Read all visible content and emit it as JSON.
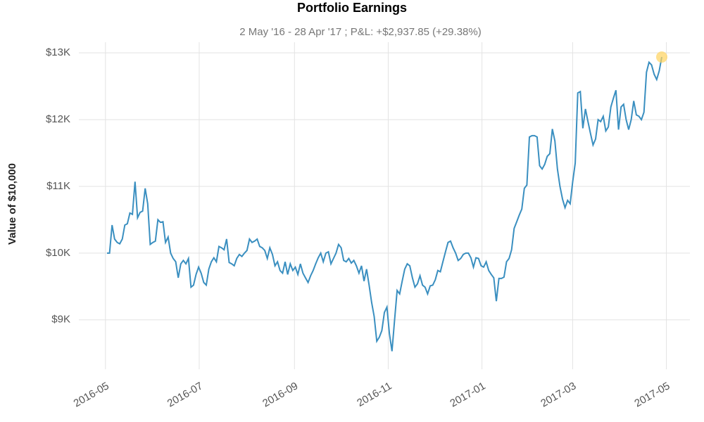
{
  "chart_data": {
    "type": "line",
    "title": "Portfolio Earnings",
    "subtitle": "2 May '16 - 28 Apr '17 ;  P&L: +$2,937.85 (+29.38%)",
    "ylabel": "Value of  $10,000",
    "xlim": [
      "2016-05-02",
      "2017-04-28"
    ],
    "xticks": [
      "2016-05",
      "2016-07",
      "2016-09",
      "2016-11",
      "2017-01",
      "2017-03",
      "2017-05"
    ],
    "ylim": [
      8260,
      13160
    ],
    "yticks": [
      {
        "value": 9000,
        "label": "$9K"
      },
      {
        "value": 10000,
        "label": "$10K"
      },
      {
        "value": 11000,
        "label": "$11K"
      },
      {
        "value": 12000,
        "label": "$12K"
      },
      {
        "value": 13000,
        "label": "$13K"
      }
    ],
    "grid": true,
    "series": [
      {
        "color": "#3a8fc0",
        "values": [
          10000,
          10000,
          10420,
          10210,
          10160,
          10140,
          10210,
          10420,
          10440,
          10600,
          10580,
          11070,
          10530,
          10610,
          10630,
          10970,
          10740,
          10130,
          10160,
          10180,
          10500,
          10460,
          10470,
          10160,
          10240,
          10000,
          9920,
          9870,
          9630,
          9840,
          9890,
          9840,
          9920,
          9490,
          9520,
          9680,
          9790,
          9700,
          9560,
          9520,
          9760,
          9870,
          9930,
          9870,
          10100,
          10080,
          10050,
          10210,
          9860,
          9840,
          9810,
          9920,
          9980,
          9950,
          10000,
          10040,
          10210,
          10160,
          10180,
          10210,
          10100,
          10080,
          10040,
          9920,
          10080,
          9980,
          9810,
          9870,
          9740,
          9700,
          9870,
          9680,
          9840,
          9740,
          9790,
          9680,
          9840,
          9700,
          9630,
          9560,
          9660,
          9740,
          9840,
          9930,
          10000,
          9870,
          10000,
          10020,
          9840,
          9920,
          10000,
          10130,
          10080,
          9890,
          9870,
          9920,
          9850,
          9890,
          9810,
          9700,
          9810,
          9580,
          9760,
          9520,
          9260,
          9050,
          8680,
          8740,
          8840,
          9110,
          9190,
          8790,
          8530,
          9000,
          9440,
          9390,
          9580,
          9760,
          9840,
          9810,
          9630,
          9490,
          9540,
          9660,
          9520,
          9490,
          9390,
          9510,
          9520,
          9600,
          9740,
          9720,
          9870,
          10020,
          10160,
          10180,
          10080,
          10000,
          9890,
          9920,
          9980,
          10000,
          10000,
          9930,
          9790,
          9930,
          9920,
          9810,
          9790,
          9870,
          9740,
          9680,
          9630,
          9280,
          9620,
          9620,
          9640,
          9870,
          9920,
          10050,
          10370,
          10470,
          10570,
          10660,
          10970,
          11020,
          11740,
          11760,
          11760,
          11740,
          11310,
          11260,
          11330,
          11450,
          11490,
          11860,
          11680,
          11260,
          11000,
          10810,
          10680,
          10790,
          10740,
          11070,
          11350,
          12400,
          12420,
          11870,
          12160,
          11970,
          11790,
          11620,
          11710,
          12000,
          11970,
          12050,
          11830,
          11890,
          12190,
          12320,
          12440,
          11850,
          12190,
          12230,
          12000,
          11850,
          12000,
          12280,
          12070,
          12050,
          12000,
          12110,
          12710,
          12860,
          12820,
          12680,
          12600,
          12730,
          12937.85
        ]
      }
    ]
  }
}
